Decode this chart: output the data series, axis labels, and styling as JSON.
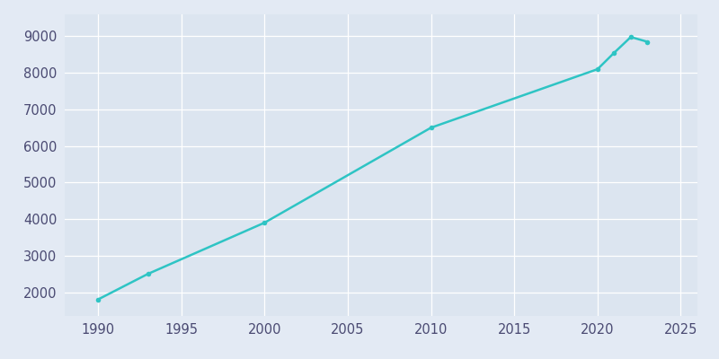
{
  "years": [
    1990,
    1993,
    2000,
    2010,
    2020,
    2021,
    2022,
    2023
  ],
  "population": [
    1800,
    2500,
    3900,
    6500,
    8100,
    8550,
    8980,
    8850
  ],
  "line_color": "#2ec4c4",
  "marker_color": "#2ec4c4",
  "background_color": "#e3eaf4",
  "axes_background": "#dce5f0",
  "grid_color": "#ffffff",
  "tick_color": "#4a4a72",
  "xlim": [
    1988,
    2026
  ],
  "ylim": [
    1350,
    9600
  ],
  "xticks": [
    1990,
    1995,
    2000,
    2005,
    2010,
    2015,
    2020,
    2025
  ],
  "yticks": [
    2000,
    3000,
    4000,
    5000,
    6000,
    7000,
    8000,
    9000
  ]
}
